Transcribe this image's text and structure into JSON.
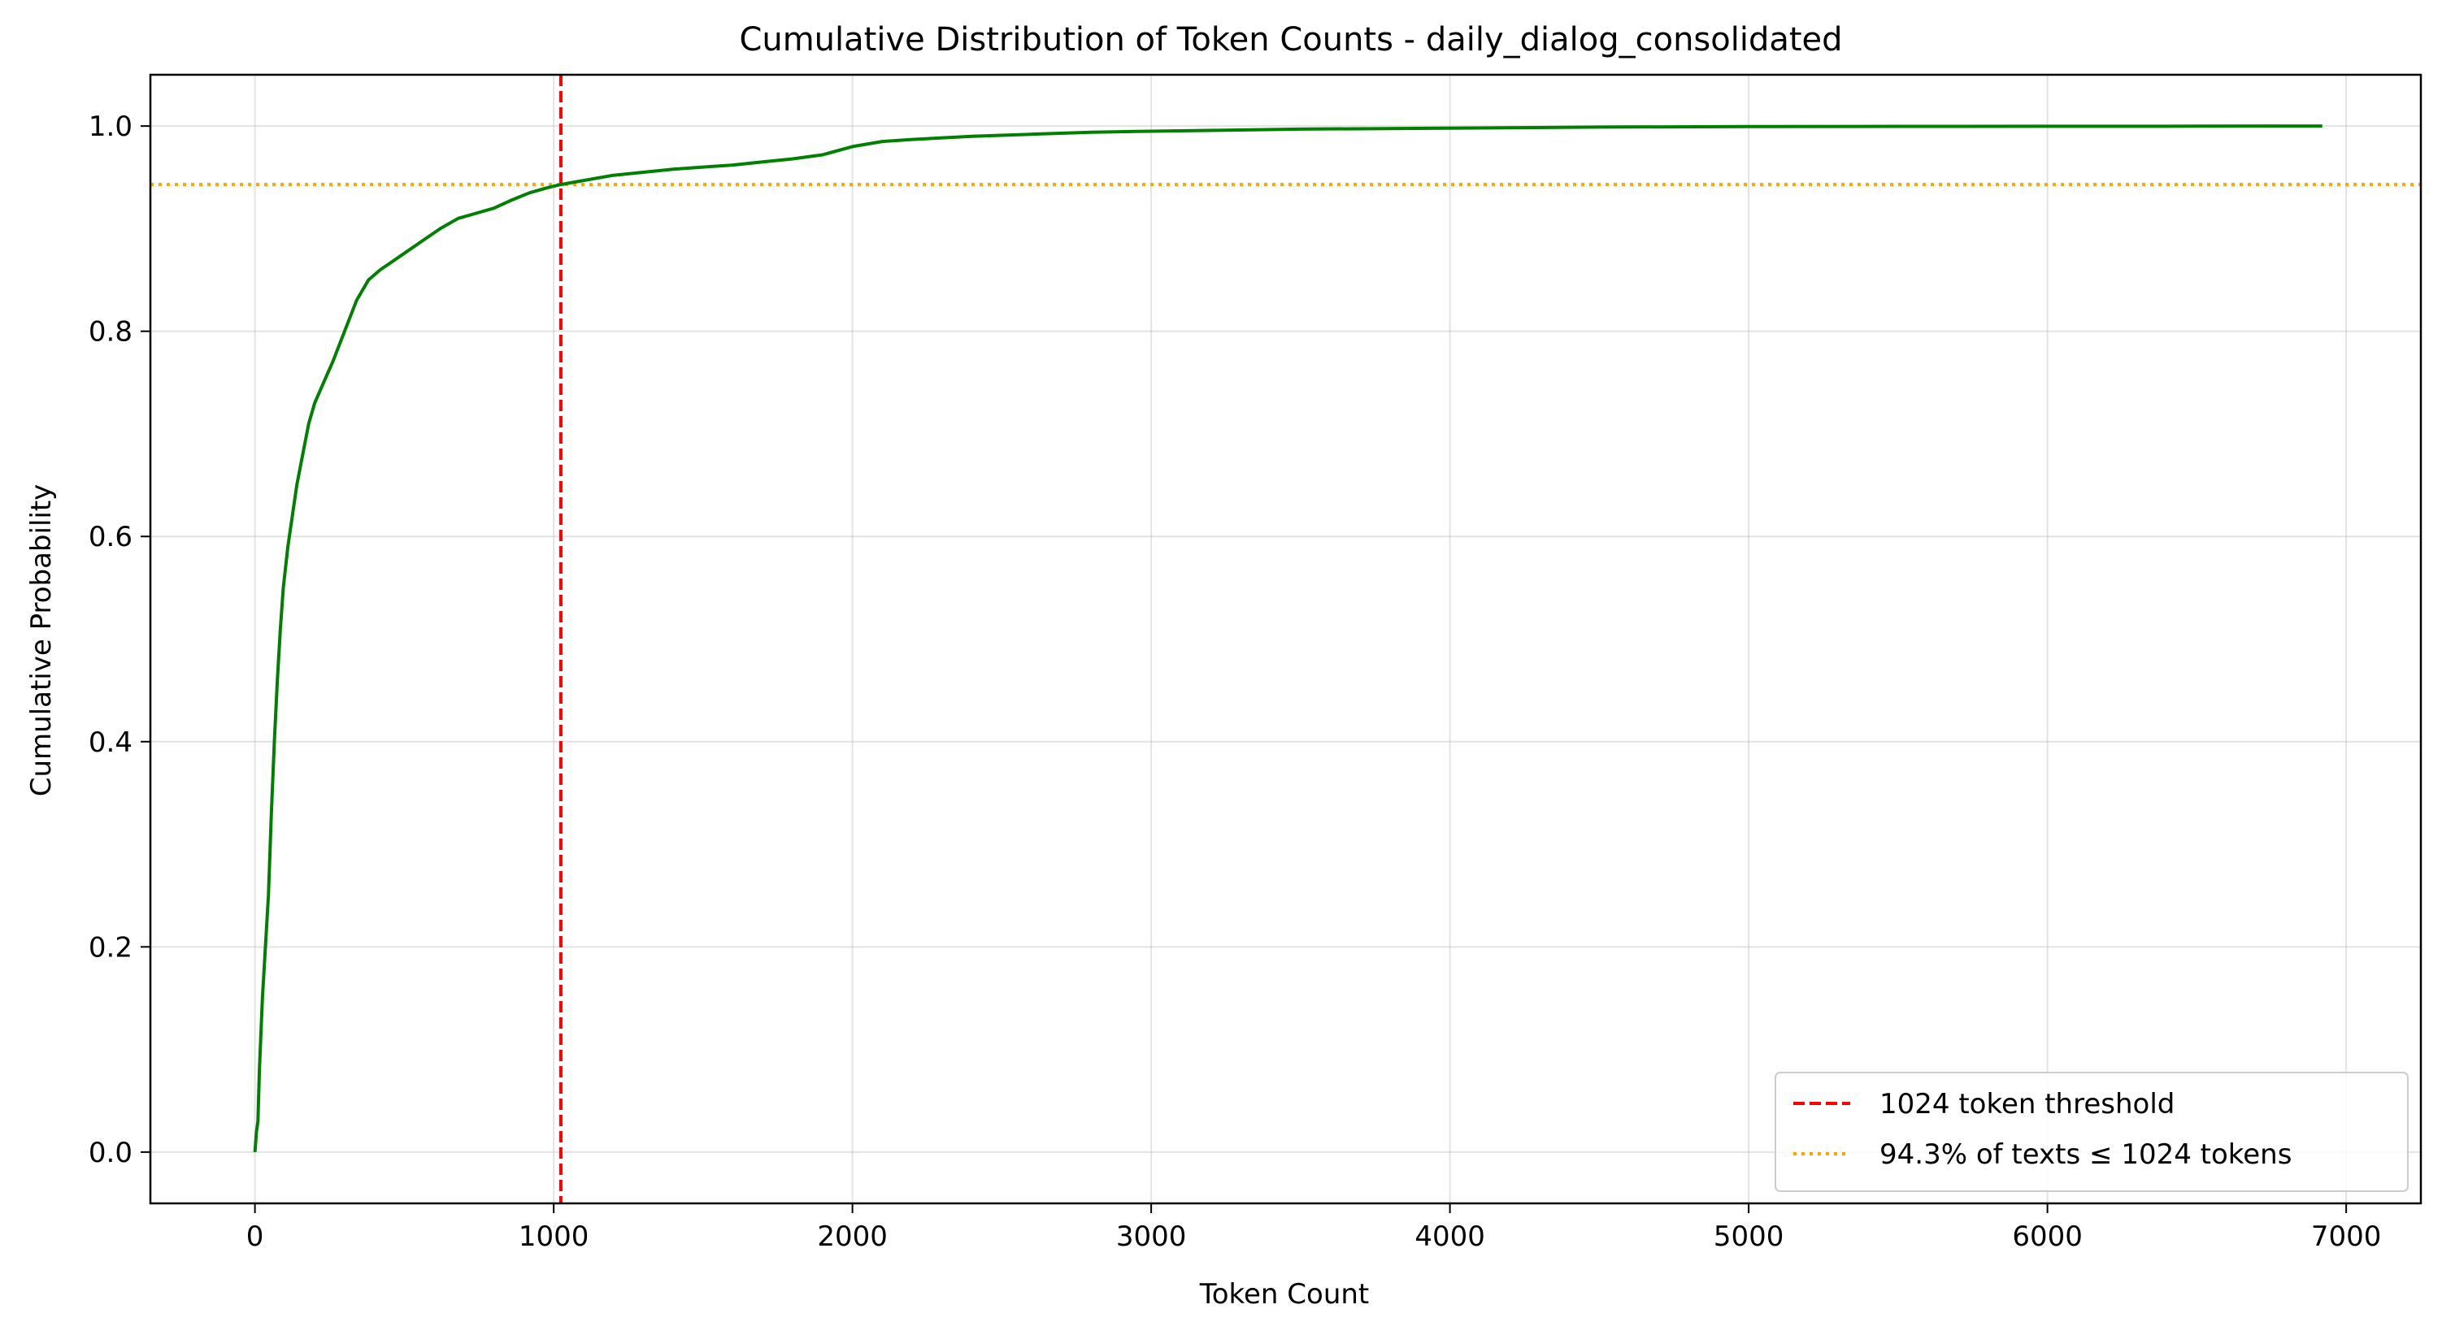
{
  "chart_data": {
    "type": "line",
    "title": "Cumulative Distribution of Token Counts - daily_dialog_consolidated",
    "xlabel": "Token Count",
    "ylabel": "Cumulative Probability",
    "xlim": [
      -350,
      7250
    ],
    "ylim": [
      -0.05,
      1.05
    ],
    "xticks": [
      0,
      1000,
      2000,
      3000,
      4000,
      5000,
      6000,
      7000
    ],
    "yticks": [
      0.0,
      0.2,
      0.4,
      0.6,
      0.8,
      1.0
    ],
    "xtick_labels": [
      "0",
      "1000",
      "2000",
      "3000",
      "4000",
      "5000",
      "6000",
      "7000"
    ],
    "ytick_labels": [
      "0.0",
      "0.2",
      "0.4",
      "0.6",
      "0.8",
      "1.0"
    ],
    "grid": true,
    "legend_position": "lower-right",
    "series": [
      {
        "type": "line",
        "color": "#008000",
        "x": [
          0,
          5,
          10,
          15,
          25,
          35,
          45,
          55,
          65,
          75,
          85,
          95,
          110,
          125,
          140,
          160,
          180,
          200,
          230,
          260,
          300,
          340,
          380,
          420,
          470,
          520,
          570,
          620,
          680,
          740,
          800,
          860,
          920,
          980,
          1024,
          1100,
          1200,
          1300,
          1400,
          1500,
          1600,
          1700,
          1800,
          1900,
          2000,
          2100,
          2200,
          2400,
          2600,
          2800,
          3000,
          3500,
          4000,
          4500,
          5000,
          5500,
          6000,
          6500,
          6920
        ],
        "y": [
          0.0,
          0.02,
          0.03,
          0.08,
          0.15,
          0.2,
          0.25,
          0.33,
          0.4,
          0.46,
          0.51,
          0.55,
          0.59,
          0.62,
          0.65,
          0.68,
          0.71,
          0.73,
          0.75,
          0.77,
          0.8,
          0.83,
          0.85,
          0.86,
          0.87,
          0.88,
          0.89,
          0.9,
          0.91,
          0.915,
          0.92,
          0.928,
          0.935,
          0.94,
          0.943,
          0.947,
          0.952,
          0.955,
          0.958,
          0.96,
          0.962,
          0.965,
          0.968,
          0.972,
          0.98,
          0.985,
          0.987,
          0.99,
          0.992,
          0.994,
          0.995,
          0.997,
          0.998,
          0.999,
          0.9995,
          0.9997,
          0.9998,
          0.9999,
          1.0
        ]
      },
      {
        "name": "1024 token threshold",
        "type": "vline",
        "x": 1024,
        "color": "#ff0000",
        "style": "dashed"
      },
      {
        "name": "94.3% of texts ≤ 1024 tokens",
        "type": "hline",
        "y": 0.943,
        "color": "#ffa500",
        "style": "dotted"
      }
    ]
  }
}
